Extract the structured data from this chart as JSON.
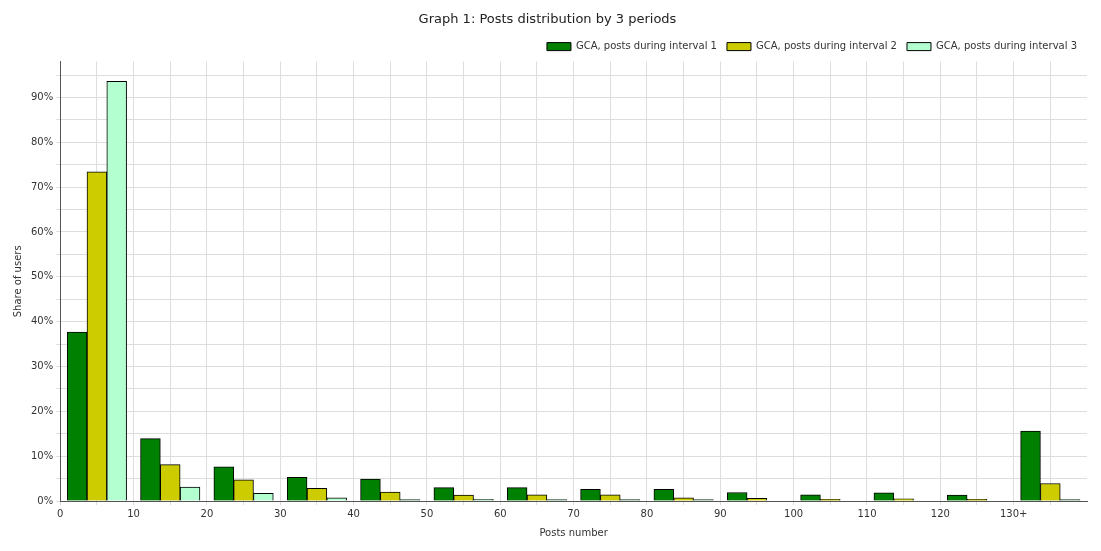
{
  "chart_data": {
    "type": "histogram",
    "title": "Graph 1: Posts distribution by 3 periods",
    "xlabel": "Posts number",
    "ylabel": "Share of users",
    "bins": [
      0,
      10,
      20,
      30,
      40,
      50,
      60,
      70,
      80,
      90,
      100,
      110,
      120,
      130,
      140
    ],
    "series": [
      {
        "name": "GCA, posts during interval 1",
        "color": "#008000",
        "values": [
          37.7,
          13.9,
          7.6,
          5.3,
          4.9,
          3.0,
          3.0,
          2.6,
          2.6,
          1.9,
          1.4,
          1.8,
          1.3,
          15.6
        ]
      },
      {
        "name": "GCA, posts during interval 2",
        "color": "#cccc00",
        "values": [
          73.4,
          8.1,
          4.7,
          2.8,
          2.0,
          1.3,
          1.4,
          1.4,
          0.7,
          0.6,
          0.4,
          0.5,
          0.4,
          3.9
        ]
      },
      {
        "name": "GCA, posts during interval 3",
        "color": "#b3ffd0",
        "values": [
          93.6,
          3.1,
          1.7,
          0.7,
          0.3,
          0.4,
          0.3,
          0.3,
          0.3,
          null,
          null,
          null,
          null,
          0.3
        ]
      }
    ],
    "xlim": [
      0,
      140
    ],
    "xticks": [
      0,
      {
        "value": 5,
        "label": null
      },
      10,
      {
        "value": 15,
        "label": null
      },
      20,
      {
        "value": 25,
        "label": null
      },
      30,
      {
        "value": 35,
        "label": null
      },
      40,
      {
        "value": 45,
        "label": null
      },
      50,
      {
        "value": 55,
        "label": null
      },
      60,
      {
        "value": 65,
        "label": null
      },
      70,
      {
        "value": 75,
        "label": null
      },
      80,
      {
        "value": 85,
        "label": null
      },
      90,
      {
        "value": 95,
        "label": null
      },
      100,
      {
        "value": 105,
        "label": null
      },
      110,
      {
        "value": 115,
        "label": null
      },
      120,
      {
        "value": 125,
        "label": null
      },
      {
        "value": 130,
        "label": "130+"
      },
      {
        "value": 135,
        "label": null
      }
    ],
    "ylim": [
      0,
      98
    ],
    "yticks": [
      {
        "value": 0,
        "label": "0%"
      },
      {
        "value": 5,
        "label": null
      },
      {
        "value": 10,
        "label": "10%"
      },
      {
        "value": 15,
        "label": null
      },
      {
        "value": 20,
        "label": "20%"
      },
      {
        "value": 25,
        "label": null
      },
      {
        "value": 30,
        "label": "30%"
      },
      {
        "value": 35,
        "label": null
      },
      {
        "value": 40,
        "label": "40%"
      },
      {
        "value": 45,
        "label": null
      },
      {
        "value": 50,
        "label": "50%"
      },
      {
        "value": 55,
        "label": null
      },
      {
        "value": 60,
        "label": "60%"
      },
      {
        "value": 65,
        "label": null
      },
      {
        "value": 70,
        "label": "70%"
      },
      {
        "value": 75,
        "label": null
      },
      {
        "value": 80,
        "label": "80%"
      },
      {
        "value": 85,
        "label": null
      },
      {
        "value": 90,
        "label": "90%"
      },
      {
        "value": 95,
        "label": null
      }
    ],
    "grid": true,
    "legend": "top right"
  }
}
